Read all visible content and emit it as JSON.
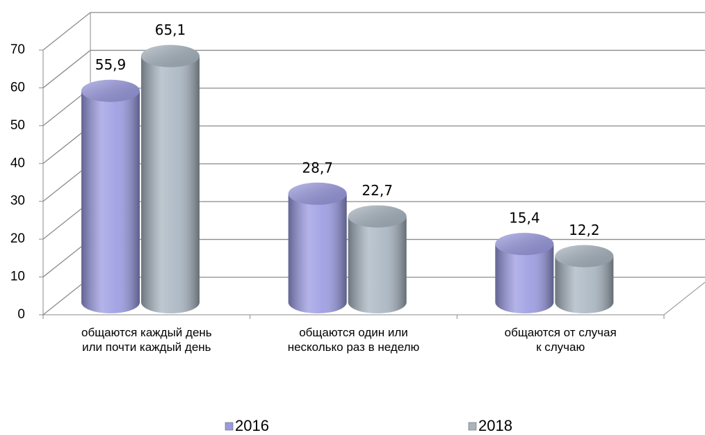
{
  "chart_data": {
    "type": "bar3d",
    "categories": [
      [
        "общаются каждый день",
        "или почти каждый день"
      ],
      [
        "общаются один или",
        "несколько раз в неделю"
      ],
      [
        "общаются от случая",
        "к случаю"
      ]
    ],
    "series": [
      {
        "name": "2016",
        "color": "#9a9ae2",
        "values": [
          55.9,
          28.7,
          15.4
        ],
        "value_labels": [
          "55,9",
          "28,7",
          "15,4"
        ]
      },
      {
        "name": "2018",
        "color": "#a8b5c1",
        "values": [
          65.1,
          22.7,
          12.2
        ],
        "value_labels": [
          "65,1",
          "22,7",
          "12,2"
        ]
      }
    ],
    "ylim": [
      0,
      70
    ],
    "yticks": [
      0,
      10,
      20,
      30,
      40,
      50,
      60,
      70
    ],
    "grid": true,
    "legend": "bottom"
  }
}
